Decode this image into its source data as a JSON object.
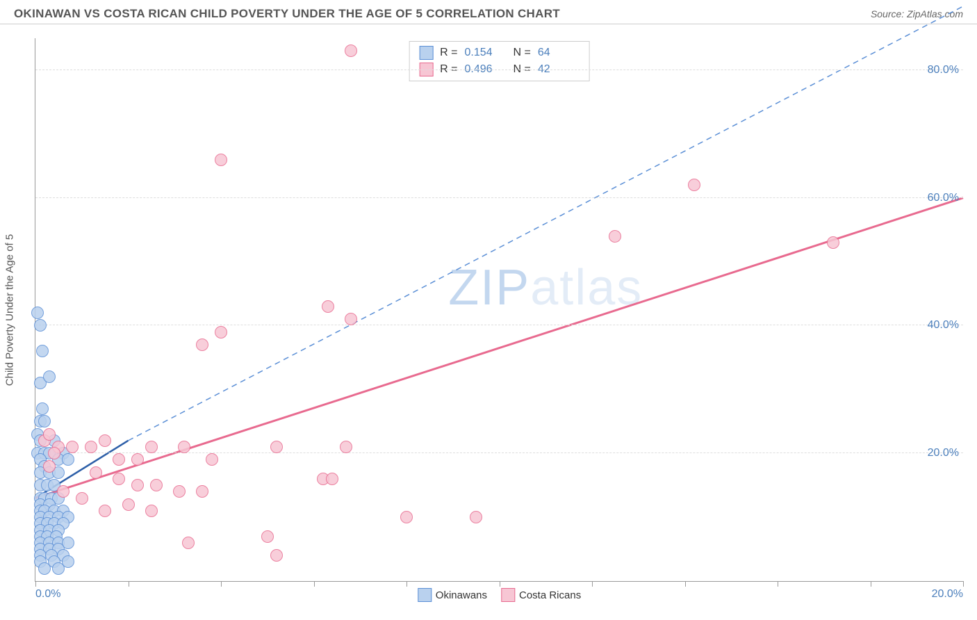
{
  "header": {
    "title": "OKINAWAN VS COSTA RICAN CHILD POVERTY UNDER THE AGE OF 5 CORRELATION CHART",
    "source_label": "Source: ZipAtlas.com"
  },
  "watermark": {
    "prefix": "ZIP",
    "suffix": "atlas"
  },
  "chart": {
    "type": "scatter",
    "background_color": "#ffffff",
    "grid_color": "#dddddd",
    "axis_color": "#999999",
    "xlim": [
      0,
      20
    ],
    "ylim": [
      0,
      85
    ],
    "xticks": [
      0,
      2,
      4,
      6,
      8,
      10,
      12,
      14,
      16,
      18,
      20
    ],
    "xtick_labels": {
      "0": "0.0%",
      "20": "20.0%"
    },
    "yticks": [
      20,
      40,
      60,
      80
    ],
    "ytick_labels": [
      "20.0%",
      "40.0%",
      "60.0%",
      "80.0%"
    ],
    "ylabel": "Child Poverty Under the Age of 5",
    "label_fontsize": 15,
    "tick_fontsize": 16,
    "tick_color": "#4a7ebb",
    "marker_radius": 9,
    "marker_border_width": 1.5,
    "marker_fill_opacity": 0.22,
    "series": [
      {
        "name": "Okinawans",
        "color": "#5b8fd6",
        "fill": "#b9d1ee",
        "R": "0.154",
        "N": "64",
        "trend": {
          "x1": 0,
          "y1": 13,
          "x2": 2.0,
          "y2": 22,
          "dashed_to_x": 20,
          "dashed_to_y": 90,
          "width": 2.5
        },
        "points": [
          [
            0.05,
            42
          ],
          [
            0.1,
            40
          ],
          [
            0.15,
            36
          ],
          [
            0.1,
            31
          ],
          [
            0.3,
            32
          ],
          [
            0.15,
            27
          ],
          [
            0.1,
            25
          ],
          [
            0.2,
            25
          ],
          [
            0.05,
            23
          ],
          [
            0.1,
            22
          ],
          [
            0.4,
            22
          ],
          [
            0.05,
            20
          ],
          [
            0.2,
            20
          ],
          [
            0.3,
            20
          ],
          [
            0.6,
            20
          ],
          [
            0.1,
            19
          ],
          [
            0.2,
            18
          ],
          [
            0.5,
            19
          ],
          [
            0.7,
            19
          ],
          [
            0.1,
            17
          ],
          [
            0.3,
            17
          ],
          [
            0.5,
            17
          ],
          [
            0.1,
            15
          ],
          [
            0.25,
            15
          ],
          [
            0.4,
            15
          ],
          [
            0.1,
            13
          ],
          [
            0.2,
            13
          ],
          [
            0.35,
            13
          ],
          [
            0.5,
            13
          ],
          [
            0.1,
            12
          ],
          [
            0.3,
            12
          ],
          [
            0.1,
            11
          ],
          [
            0.2,
            11
          ],
          [
            0.4,
            11
          ],
          [
            0.6,
            11
          ],
          [
            0.1,
            10
          ],
          [
            0.3,
            10
          ],
          [
            0.5,
            10
          ],
          [
            0.7,
            10
          ],
          [
            0.1,
            9
          ],
          [
            0.25,
            9
          ],
          [
            0.4,
            9
          ],
          [
            0.6,
            9
          ],
          [
            0.1,
            8
          ],
          [
            0.3,
            8
          ],
          [
            0.5,
            8
          ],
          [
            0.1,
            7
          ],
          [
            0.25,
            7
          ],
          [
            0.45,
            7
          ],
          [
            0.1,
            6
          ],
          [
            0.3,
            6
          ],
          [
            0.5,
            6
          ],
          [
            0.7,
            6
          ],
          [
            0.1,
            5
          ],
          [
            0.3,
            5
          ],
          [
            0.5,
            5
          ],
          [
            0.1,
            4
          ],
          [
            0.35,
            4
          ],
          [
            0.6,
            4
          ],
          [
            0.1,
            3
          ],
          [
            0.4,
            3
          ],
          [
            0.7,
            3
          ],
          [
            0.2,
            2
          ],
          [
            0.5,
            2
          ]
        ]
      },
      {
        "name": "Costa Ricans",
        "color": "#e86a8f",
        "fill": "#f7c6d4",
        "R": "0.496",
        "N": "42",
        "trend": {
          "x1": 0,
          "y1": 13,
          "x2": 20,
          "y2": 60,
          "width": 3
        },
        "points": [
          [
            6.8,
            83
          ],
          [
            4.0,
            66
          ],
          [
            14.2,
            62
          ],
          [
            12.5,
            54
          ],
          [
            17.2,
            53
          ],
          [
            6.3,
            43
          ],
          [
            4.0,
            39
          ],
          [
            3.6,
            37
          ],
          [
            6.8,
            41
          ],
          [
            0.2,
            22
          ],
          [
            0.3,
            23
          ],
          [
            0.5,
            21
          ],
          [
            0.8,
            21
          ],
          [
            1.2,
            21
          ],
          [
            1.5,
            22
          ],
          [
            1.8,
            19
          ],
          [
            2.2,
            19
          ],
          [
            2.5,
            21
          ],
          [
            3.2,
            21
          ],
          [
            3.8,
            19
          ],
          [
            5.2,
            21
          ],
          [
            6.7,
            21
          ],
          [
            1.3,
            17
          ],
          [
            1.8,
            16
          ],
          [
            2.2,
            15
          ],
          [
            2.6,
            15
          ],
          [
            3.1,
            14
          ],
          [
            3.6,
            14
          ],
          [
            0.6,
            14
          ],
          [
            1.0,
            13
          ],
          [
            1.5,
            11
          ],
          [
            2.0,
            12
          ],
          [
            2.5,
            11
          ],
          [
            0.3,
            18
          ],
          [
            0.4,
            20
          ],
          [
            6.2,
            16
          ],
          [
            6.4,
            16
          ],
          [
            8.0,
            10
          ],
          [
            9.5,
            10
          ],
          [
            5.0,
            7
          ],
          [
            3.3,
            6
          ],
          [
            5.2,
            4
          ]
        ]
      }
    ]
  },
  "legend_top": {
    "R_label": "R =",
    "N_label": "N ="
  },
  "legend_bottom": {
    "items": [
      "Okinawans",
      "Costa Ricans"
    ]
  }
}
